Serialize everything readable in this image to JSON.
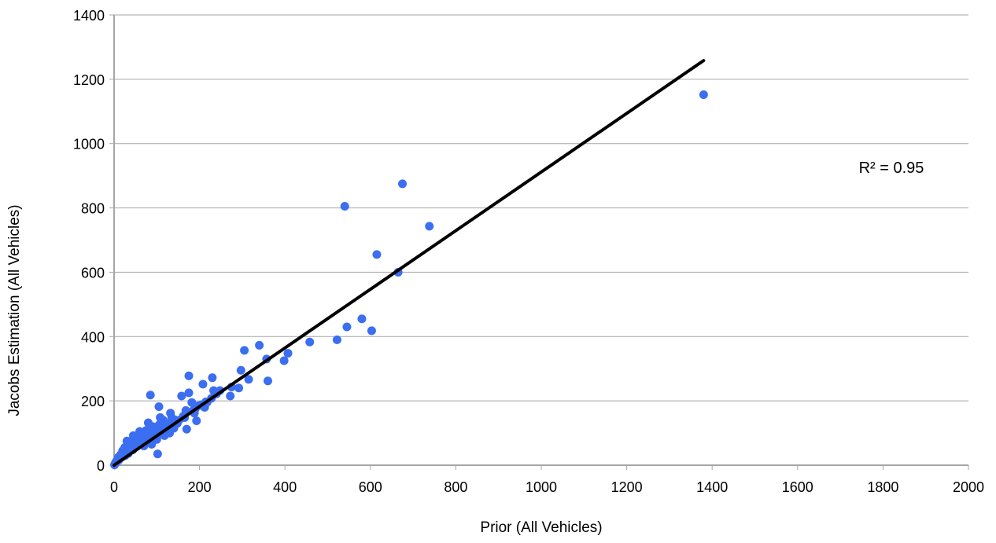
{
  "chart_data": {
    "type": "scatter",
    "title": "",
    "xlabel": "Prior (All Vehicles)",
    "ylabel": "Jacobs Estimation (All Vehicles)",
    "xlim": [
      0,
      2000
    ],
    "ylim": [
      0,
      1400
    ],
    "x_ticks": [
      0,
      200,
      400,
      600,
      800,
      1000,
      1200,
      1400,
      1600,
      1800,
      2000
    ],
    "y_ticks": [
      0,
      200,
      400,
      600,
      800,
      1000,
      1200,
      1400
    ],
    "grid": "horizontal",
    "legend": "none",
    "annotation": "R² = 0.95",
    "colors": {
      "points": "#3b6ef0",
      "trendline": "#000000",
      "gridline": "#a6a6a6",
      "axis": "#a6a6a6"
    },
    "trendline": {
      "x": [
        0,
        1380
      ],
      "y": [
        0,
        1258
      ]
    },
    "series": [
      {
        "points": [
          [
            1380,
            1152
          ],
          [
            675,
            875
          ],
          [
            540,
            805
          ],
          [
            738,
            743
          ],
          [
            615,
            655
          ],
          [
            665,
            600
          ],
          [
            580,
            455
          ],
          [
            545,
            430
          ],
          [
            603,
            418
          ],
          [
            522,
            390
          ],
          [
            458,
            383
          ],
          [
            407,
            348
          ],
          [
            398,
            325
          ],
          [
            340,
            373
          ],
          [
            305,
            357
          ],
          [
            357,
            330
          ],
          [
            360,
            262
          ],
          [
            315,
            267
          ],
          [
            297,
            295
          ],
          [
            292,
            240
          ],
          [
            272,
            215
          ],
          [
            275,
            243
          ],
          [
            248,
            232
          ],
          [
            230,
            272
          ],
          [
            233,
            232
          ],
          [
            228,
            208
          ],
          [
            208,
            252
          ],
          [
            215,
            197
          ],
          [
            212,
            180
          ],
          [
            198,
            185
          ],
          [
            190,
            175
          ],
          [
            193,
            138
          ],
          [
            188,
            162
          ],
          [
            182,
            195
          ],
          [
            175,
            225
          ],
          [
            175,
            278
          ],
          [
            170,
            112
          ],
          [
            168,
            170
          ],
          [
            162,
            152
          ],
          [
            158,
            215
          ],
          [
            148,
            130
          ],
          [
            145,
            140
          ],
          [
            140,
            115
          ],
          [
            135,
            148
          ],
          [
            132,
            162
          ],
          [
            130,
            100
          ],
          [
            125,
            128
          ],
          [
            122,
            112
          ],
          [
            118,
            92
          ],
          [
            115,
            140
          ],
          [
            112,
            120
          ],
          [
            108,
            148
          ],
          [
            105,
            182
          ],
          [
            105,
            125
          ],
          [
            102,
            35
          ],
          [
            100,
            80
          ],
          [
            98,
            105
          ],
          [
            95,
            112
          ],
          [
            92,
            88
          ],
          [
            90,
            120
          ],
          [
            88,
            65
          ],
          [
            85,
            218
          ],
          [
            85,
            100
          ],
          [
            82,
            92
          ],
          [
            80,
            132
          ],
          [
            78,
            75
          ],
          [
            75,
            108
          ],
          [
            72,
            88
          ],
          [
            70,
            60
          ],
          [
            68,
            100
          ],
          [
            65,
            80
          ],
          [
            62,
            95
          ],
          [
            60,
            105
          ],
          [
            58,
            70
          ],
          [
            55,
            88
          ],
          [
            52,
            65
          ],
          [
            50,
            78
          ],
          [
            48,
            55
          ],
          [
            45,
            92
          ],
          [
            42,
            60
          ],
          [
            40,
            72
          ],
          [
            38,
            45
          ],
          [
            35,
            65
          ],
          [
            32,
            50
          ],
          [
            30,
            75
          ],
          [
            28,
            40
          ],
          [
            25,
            55
          ],
          [
            22,
            35
          ],
          [
            20,
            45
          ],
          [
            18,
            28
          ],
          [
            15,
            32
          ],
          [
            12,
            20
          ],
          [
            10,
            25
          ],
          [
            8,
            15
          ],
          [
            6,
            10
          ],
          [
            4,
            8
          ],
          [
            2,
            4
          ],
          [
            1,
            1
          ],
          [
            3,
            6
          ],
          [
            5,
            12
          ],
          [
            7,
            14
          ],
          [
            9,
            18
          ],
          [
            11,
            16
          ],
          [
            14,
            22
          ],
          [
            17,
            30
          ],
          [
            19,
            26
          ],
          [
            23,
            38
          ],
          [
            26,
            30
          ],
          [
            29,
            42
          ],
          [
            33,
            36
          ],
          [
            36,
            48
          ],
          [
            39,
            52
          ],
          [
            44,
            48
          ],
          [
            47,
            62
          ],
          [
            53,
            58
          ],
          [
            57,
            82
          ],
          [
            63,
            72
          ],
          [
            67,
            70
          ],
          [
            73,
            82
          ],
          [
            77,
            98
          ],
          [
            83,
            76
          ],
          [
            87,
            110
          ],
          [
            93,
            96
          ],
          [
            97,
            90
          ],
          [
            103,
            96
          ],
          [
            107,
            112
          ],
          [
            113,
            104
          ],
          [
            117,
            128
          ],
          [
            123,
            118
          ],
          [
            127,
            108
          ],
          [
            137,
            124
          ],
          [
            142,
            132
          ],
          [
            152,
            140
          ],
          [
            165,
            148
          ],
          [
            185,
            170
          ],
          [
            205,
            188
          ],
          [
            218,
            196
          ],
          [
            240,
            222
          ]
        ]
      }
    ]
  }
}
